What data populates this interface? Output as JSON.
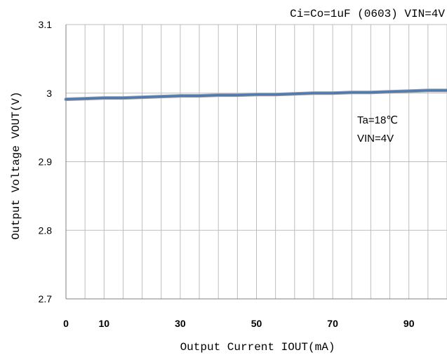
{
  "chart_data": {
    "type": "line",
    "title": "Ci=Co=1uF (0603) VIN=4V",
    "xlabel": "Output Current IOUT(mA)",
    "ylabel": "Output Voltage VOUT(V)",
    "xlim": [
      0,
      100
    ],
    "ylim": [
      2.7,
      3.1
    ],
    "x_ticks": [
      "0",
      "10",
      "30",
      "50",
      "70",
      "90"
    ],
    "y_ticks": [
      "3.1",
      "3",
      "2.9",
      "2.8",
      "2.7"
    ],
    "grid": true,
    "annotation": [
      "Ta=18℃",
      "VIN=4V"
    ],
    "series": [
      {
        "color": "#4a7ab8",
        "x": [
          0,
          5,
          10,
          15,
          20,
          25,
          30,
          35,
          40,
          45,
          50,
          55,
          60,
          65,
          70,
          75,
          80,
          85,
          90,
          95,
          100
        ],
        "y": [
          2.991,
          2.992,
          2.993,
          2.993,
          2.994,
          2.995,
          2.996,
          2.996,
          2.997,
          2.997,
          2.998,
          2.998,
          2.999,
          3.0,
          3.0,
          3.001,
          3.001,
          3.002,
          3.003,
          3.004,
          3.004
        ]
      }
    ]
  }
}
